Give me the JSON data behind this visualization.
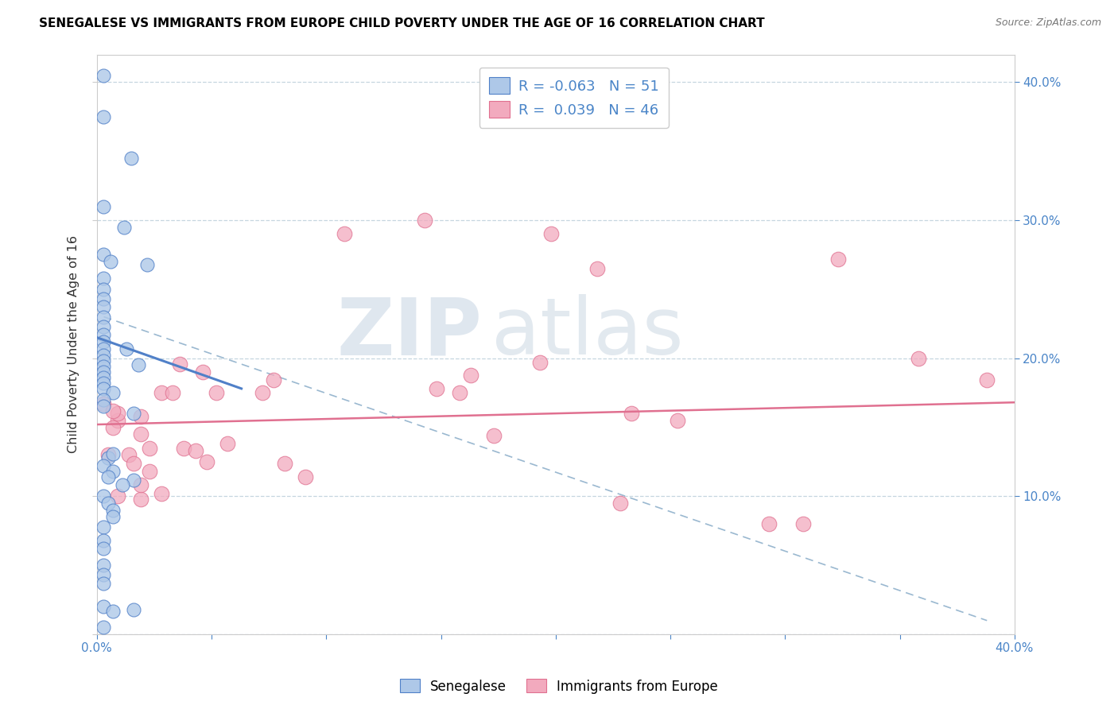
{
  "title": "SENEGALESE VS IMMIGRANTS FROM EUROPE CHILD POVERTY UNDER THE AGE OF 16 CORRELATION CHART",
  "source": "Source: ZipAtlas.com",
  "ylabel": "Child Poverty Under the Age of 16",
  "xlim": [
    0.0,
    0.4
  ],
  "ylim": [
    0.0,
    0.42
  ],
  "legend_R_blue": "-0.063",
  "legend_N_blue": "51",
  "legend_R_pink": "0.039",
  "legend_N_pink": "46",
  "blue_color": "#aec8e8",
  "pink_color": "#f2aabe",
  "line_blue_color": "#5080c8",
  "line_pink_color": "#e07090",
  "line_dashed_color": "#9ab8d0",
  "watermark_zip": "ZIP",
  "watermark_atlas": "atlas",
  "blue_scatter": [
    [
      0.003,
      0.405
    ],
    [
      0.003,
      0.375
    ],
    [
      0.015,
      0.345
    ],
    [
      0.003,
      0.31
    ],
    [
      0.012,
      0.295
    ],
    [
      0.003,
      0.275
    ],
    [
      0.006,
      0.27
    ],
    [
      0.003,
      0.258
    ],
    [
      0.003,
      0.25
    ],
    [
      0.003,
      0.243
    ],
    [
      0.003,
      0.237
    ],
    [
      0.003,
      0.23
    ],
    [
      0.003,
      0.223
    ],
    [
      0.003,
      0.217
    ],
    [
      0.022,
      0.268
    ],
    [
      0.003,
      0.212
    ],
    [
      0.003,
      0.207
    ],
    [
      0.003,
      0.202
    ],
    [
      0.003,
      0.198
    ],
    [
      0.003,
      0.194
    ],
    [
      0.003,
      0.19
    ],
    [
      0.003,
      0.186
    ],
    [
      0.003,
      0.182
    ],
    [
      0.003,
      0.178
    ],
    [
      0.013,
      0.207
    ],
    [
      0.007,
      0.175
    ],
    [
      0.003,
      0.17
    ],
    [
      0.003,
      0.165
    ],
    [
      0.018,
      0.195
    ],
    [
      0.016,
      0.16
    ],
    [
      0.005,
      0.128
    ],
    [
      0.007,
      0.131
    ],
    [
      0.003,
      0.122
    ],
    [
      0.007,
      0.118
    ],
    [
      0.005,
      0.114
    ],
    [
      0.016,
      0.112
    ],
    [
      0.011,
      0.108
    ],
    [
      0.003,
      0.1
    ],
    [
      0.005,
      0.095
    ],
    [
      0.007,
      0.09
    ],
    [
      0.007,
      0.085
    ],
    [
      0.003,
      0.078
    ],
    [
      0.003,
      0.068
    ],
    [
      0.003,
      0.062
    ],
    [
      0.003,
      0.05
    ],
    [
      0.003,
      0.043
    ],
    [
      0.003,
      0.037
    ],
    [
      0.003,
      0.02
    ],
    [
      0.016,
      0.018
    ],
    [
      0.003,
      0.005
    ],
    [
      0.007,
      0.017
    ]
  ],
  "pink_scatter": [
    [
      0.003,
      0.167
    ],
    [
      0.009,
      0.155
    ],
    [
      0.007,
      0.15
    ],
    [
      0.009,
      0.16
    ],
    [
      0.007,
      0.162
    ],
    [
      0.014,
      0.13
    ],
    [
      0.016,
      0.124
    ],
    [
      0.019,
      0.145
    ],
    [
      0.023,
      0.135
    ],
    [
      0.019,
      0.158
    ],
    [
      0.005,
      0.13
    ],
    [
      0.009,
      0.1
    ],
    [
      0.019,
      0.098
    ],
    [
      0.019,
      0.108
    ],
    [
      0.028,
      0.102
    ],
    [
      0.023,
      0.118
    ],
    [
      0.036,
      0.196
    ],
    [
      0.028,
      0.175
    ],
    [
      0.033,
      0.175
    ],
    [
      0.038,
      0.135
    ],
    [
      0.043,
      0.133
    ],
    [
      0.046,
      0.19
    ],
    [
      0.048,
      0.125
    ],
    [
      0.052,
      0.175
    ],
    [
      0.057,
      0.138
    ],
    [
      0.072,
      0.175
    ],
    [
      0.077,
      0.184
    ],
    [
      0.082,
      0.124
    ],
    [
      0.091,
      0.114
    ],
    [
      0.108,
      0.29
    ],
    [
      0.143,
      0.3
    ],
    [
      0.148,
      0.178
    ],
    [
      0.158,
      0.175
    ],
    [
      0.163,
      0.188
    ],
    [
      0.173,
      0.144
    ],
    [
      0.193,
      0.197
    ],
    [
      0.198,
      0.29
    ],
    [
      0.218,
      0.265
    ],
    [
      0.228,
      0.095
    ],
    [
      0.233,
      0.16
    ],
    [
      0.253,
      0.155
    ],
    [
      0.293,
      0.08
    ],
    [
      0.308,
      0.08
    ],
    [
      0.323,
      0.272
    ],
    [
      0.358,
      0.2
    ],
    [
      0.388,
      0.184
    ]
  ],
  "blue_line_x": [
    0.0,
    0.063
  ],
  "blue_line_y": [
    0.215,
    0.178
  ],
  "pink_line_x": [
    0.0,
    0.4
  ],
  "pink_line_y": [
    0.152,
    0.168
  ],
  "dashed_line_x": [
    0.003,
    0.388
  ],
  "dashed_line_y": [
    0.23,
    0.01
  ]
}
